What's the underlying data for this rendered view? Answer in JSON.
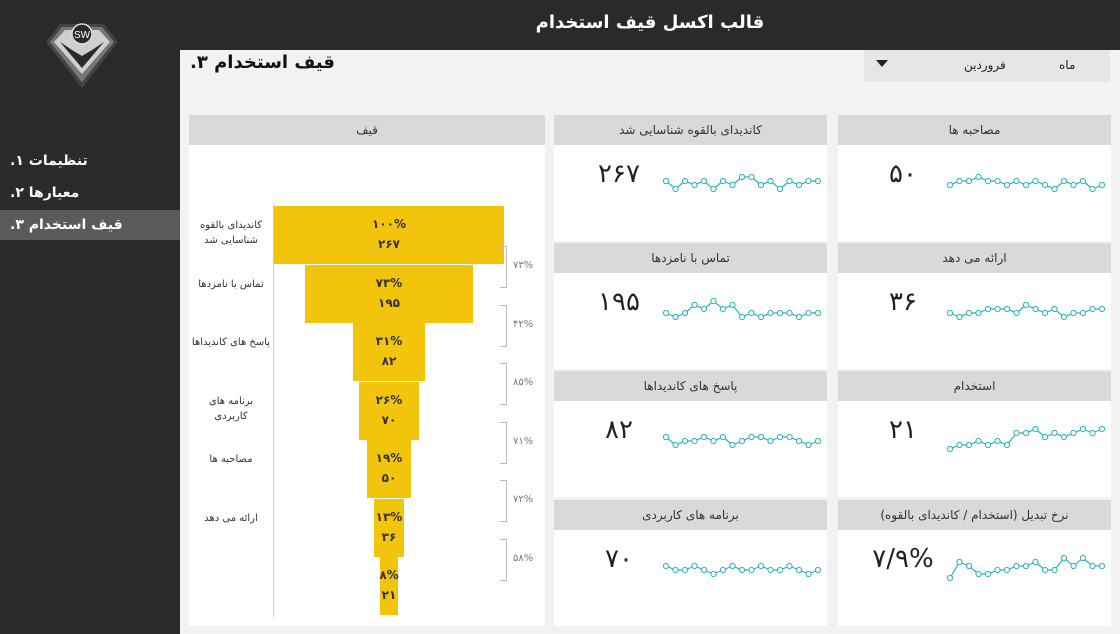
{
  "app": {
    "title": "قالب اکسل قیف استخدام",
    "logo_text": "SW"
  },
  "nav": [
    {
      "label": "تنظیمات ۱.",
      "active": false
    },
    {
      "label": "معیارها ۲.",
      "active": false
    },
    {
      "label": "قیف استخدام ۳.",
      "active": true
    }
  ],
  "page": {
    "title": "قیف استخدام ۳."
  },
  "filter": {
    "label": "ماه",
    "value": "فروردین"
  },
  "funnel": {
    "header": "قیف",
    "stages": [
      {
        "label": "کاندیدای بالقوه شناسایی شد",
        "pct": "۱۰۰%",
        "value": "۲۶۷",
        "share": 1.0
      },
      {
        "label": "تماس با نامزدها",
        "pct": "۷۳%",
        "value": "۱۹۵",
        "share": 0.73
      },
      {
        "label": "پاسخ های کاندیداها",
        "pct": "۳۱%",
        "value": "۸۲",
        "share": 0.31
      },
      {
        "label": "برنامه های کاربردی",
        "pct": "۲۶%",
        "value": "۷۰",
        "share": 0.26
      },
      {
        "label": "مصاحبه ها",
        "pct": "۱۹%",
        "value": "۵۰",
        "share": 0.19
      },
      {
        "label": "ارائه می دهد",
        "pct": "۱۳%",
        "value": "۳۶",
        "share": 0.13
      },
      {
        "label": "",
        "pct": "۸%",
        "value": "۲۱",
        "share": 0.08
      }
    ],
    "conversions": [
      "۷۳%",
      "۴۲%",
      "۸۵%",
      "۷۱%",
      "۷۲%",
      "۵۸%"
    ]
  },
  "kpis": [
    {
      "title": "کاندیدای بالقوه شناسایی شد",
      "value": "۲۶۷",
      "spark": [
        5,
        3,
        5,
        4,
        5,
        3,
        5,
        4,
        6,
        6,
        4,
        5,
        3,
        5,
        4,
        5,
        5
      ]
    },
    {
      "title": "مصاحبه ها",
      "value": "۵۰",
      "spark": [
        4,
        5,
        5,
        6,
        5,
        5,
        4,
        5,
        4,
        5,
        4,
        3,
        5,
        4,
        5,
        3,
        4
      ]
    },
    {
      "title": "تماس با نامزدها",
      "value": "۱۹۵",
      "spark": [
        4,
        3,
        4,
        6,
        5,
        7,
        5,
        6,
        3,
        4,
        3,
        4,
        4,
        4,
        3,
        4,
        4
      ]
    },
    {
      "title": "ارائه می دهد",
      "value": "۳۶",
      "spark": [
        4,
        3,
        4,
        4,
        5,
        5,
        5,
        4,
        6,
        5,
        4,
        5,
        3,
        4,
        4,
        5,
        5
      ]
    },
    {
      "title": "پاسخ های کاندیداها",
      "value": "۸۲",
      "spark": [
        5,
        3,
        4,
        4,
        5,
        4,
        5,
        3,
        4,
        5,
        5,
        4,
        5,
        5,
        4,
        3,
        4
      ]
    },
    {
      "title": "استخدام",
      "value": "۲۱",
      "spark": [
        2,
        3,
        3,
        4,
        3,
        4,
        3,
        6,
        6,
        7,
        5,
        6,
        5,
        6,
        7,
        6,
        7
      ]
    },
    {
      "title": "برنامه های کاربردی",
      "value": "۷۰",
      "spark": [
        5,
        4,
        4,
        5,
        4,
        3,
        4,
        5,
        4,
        4,
        5,
        4,
        4,
        5,
        4,
        3,
        4
      ]
    },
    {
      "title": "نرخ تبدیل (استخدام / کاندیدای بالقوه)",
      "value": "۷/۹%",
      "spark": [
        2,
        6,
        5,
        3,
        3,
        4,
        4,
        5,
        5,
        6,
        4,
        4,
        7,
        5,
        7,
        5,
        5
      ]
    }
  ],
  "colors": {
    "funnel_bar": "#f2c40c",
    "spark": "#2db3b8",
    "dark": "#2b2a29"
  }
}
